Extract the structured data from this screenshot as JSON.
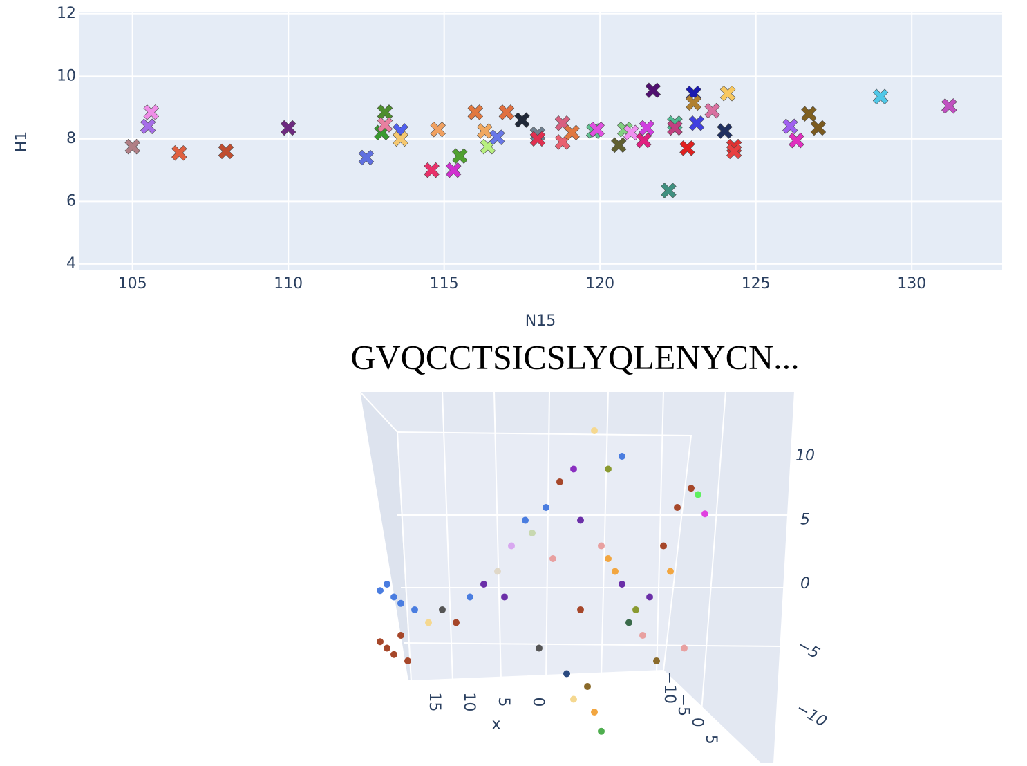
{
  "chart_data": [
    {
      "type": "scatter",
      "x_label": "N15",
      "y_label": "H1",
      "xlim": [
        103.3,
        132.9
      ],
      "xticks": [
        105,
        110,
        115,
        120,
        125,
        130
      ],
      "ylim": [
        3.82,
        12.04
      ],
      "yticks": [
        4,
        6,
        8,
        10,
        12
      ],
      "grid": true,
      "x": [
        105,
        105.5,
        105.6,
        106.5,
        108,
        110,
        112.5,
        113,
        113.1,
        113.1,
        113.6,
        113.6,
        114.6,
        114.8,
        115.3,
        115.5,
        116,
        116.3,
        116.4,
        116.7,
        117,
        117.5,
        118,
        118,
        118.8,
        118.8,
        119.1,
        119.8,
        119.9,
        120.6,
        120.8,
        121,
        121.4,
        121.5,
        121.7,
        122.2,
        122.4,
        122.4,
        122.8,
        123,
        123,
        123.1,
        123.6,
        124,
        124.1,
        124.3,
        124.3,
        126.1,
        126.3,
        126.7,
        127,
        129,
        131.2
      ],
      "values": [
        7.75,
        8.4,
        8.85,
        7.55,
        7.6,
        8.35,
        7.4,
        8.2,
        8.85,
        8.45,
        8.25,
        8.0,
        7.0,
        8.3,
        7.0,
        7.45,
        8.85,
        8.25,
        7.75,
        8.05,
        8.85,
        8.6,
        8.15,
        8.0,
        8.5,
        7.9,
        8.2,
        8.25,
        8.3,
        7.8,
        8.3,
        8.2,
        7.95,
        8.35,
        9.55,
        6.35,
        8.5,
        8.35,
        7.7,
        9.45,
        9.15,
        8.5,
        8.9,
        8.25,
        9.45,
        7.75,
        7.6,
        8.4,
        7.95,
        8.8,
        8.35,
        9.35,
        9.05
      ],
      "colors": [
        "#b07f86",
        "#a66ee8",
        "#ef8ee8",
        "#e06040",
        "#c04e30",
        "#6d2a80",
        "#6070e0",
        "#3a9a30",
        "#4e8e2e",
        "#e880a0",
        "#5060f0",
        "#f5c870",
        "#e8306a",
        "#f0a060",
        "#d030d0",
        "#50a030",
        "#e07840",
        "#f0a860",
        "#b8f080",
        "#6878e8",
        "#e07040",
        "#202838",
        "#708090",
        "#e03050",
        "#d86080",
        "#e86070",
        "#e07840",
        "#60c090",
        "#e050e0",
        "#606030",
        "#80d080",
        "#f090f0",
        "#e02080",
        "#d040e0",
        "#501070",
        "#409080",
        "#50b890",
        "#c04080",
        "#e02020",
        "#1a1ab0",
        "#b08030",
        "#4040e0",
        "#d870a0",
        "#203060",
        "#f8c860",
        "#e03030",
        "#e84040",
        "#a060f0",
        "#e030c0",
        "#806020",
        "#7a5a20",
        "#50c8e8",
        "#c050c0"
      ]
    },
    {
      "type": "scatter3d",
      "title": "GVQCCTSICSLYQLENYCN...",
      "x_label": "x",
      "xticks": [
        0,
        5,
        10,
        15
      ],
      "yticks": [
        {
          "value": -10,
          "label": "−10"
        },
        {
          "value": -5,
          "label": "−5"
        },
        0,
        5
      ],
      "zticks": [
        {
          "value": -10,
          "label": "−10"
        },
        {
          "value": -5,
          "label": "−5"
        },
        0,
        5,
        10
      ],
      "x": [
        29,
        28,
        27,
        26,
        24,
        28,
        27,
        25,
        29,
        26,
        20,
        18,
        16,
        14,
        12,
        10,
        7,
        5,
        3,
        1,
        0,
        -2,
        -4,
        -6,
        -8,
        -10,
        -12,
        -14,
        -16,
        -17,
        -18,
        -3,
        -2,
        -1,
        1,
        2,
        -5,
        -7,
        -9,
        -11,
        -4,
        -6,
        -3,
        0,
        4,
        8,
        6,
        -13,
        -15,
        22,
        11
      ],
      "y": [
        0,
        0,
        0,
        0,
        0,
        0,
        0,
        0,
        0,
        0,
        0,
        0,
        0,
        0,
        0,
        0,
        0,
        0,
        0,
        0,
        0,
        0,
        0,
        0,
        0,
        0,
        0,
        0,
        0,
        0,
        0,
        0,
        0,
        0,
        0,
        0,
        0,
        0,
        0,
        0,
        0,
        0,
        0,
        0,
        0,
        0,
        0,
        0,
        0,
        0,
        0
      ],
      "z": [
        -0.5,
        0,
        -1,
        -1.5,
        -2,
        -5,
        -5.5,
        -6,
        -4.5,
        -4,
        -2,
        -3,
        -1,
        0,
        1,
        3,
        4,
        6,
        8,
        9,
        5,
        12,
        2,
        0,
        -2,
        -1,
        3,
        6,
        7.5,
        7,
        5.5,
        -11.5,
        -10,
        -8,
        -9,
        -7,
        1,
        -3,
        -4,
        -6,
        9,
        10,
        3,
        -2,
        2,
        5,
        -5,
        1,
        -5,
        -3,
        -1
      ],
      "colors": [
        "#4a7de0",
        "#4a7de0",
        "#4a7de0",
        "#4a7de0",
        "#4a7de0",
        "#a6472a",
        "#a6472a",
        "#a6472a",
        "#a6472a",
        "#a6472a",
        "#555555",
        "#a6472a",
        "#4a7de0",
        "#6b2fa8",
        "#e0d8c8",
        "#d8a8f0",
        "#c8d8b0",
        "#4a7de0",
        "#a6472a",
        "#8a2fc0",
        "#6b2fa8",
        "#f5d890",
        "#f2a640",
        "#6b2fa8",
        "#8a9a30",
        "#6b2fa8",
        "#a6472a",
        "#a6472a",
        "#a6472a",
        "#5ef05e",
        "#e040e0",
        "#4fae4f",
        "#f2a640",
        "#8a6a2a",
        "#f5d890",
        "#2a4a80",
        "#f2a640",
        "#3a6a4a",
        "#e8a0a0",
        "#8a6a2a",
        "#8a9a30",
        "#4a7de0",
        "#e8a0a0",
        "#a6472a",
        "#e8a0a0",
        "#4a7de0",
        "#555555",
        "#f2a640",
        "#e8a0a0",
        "#f5d890",
        "#6b2fa8"
      ]
    }
  ]
}
